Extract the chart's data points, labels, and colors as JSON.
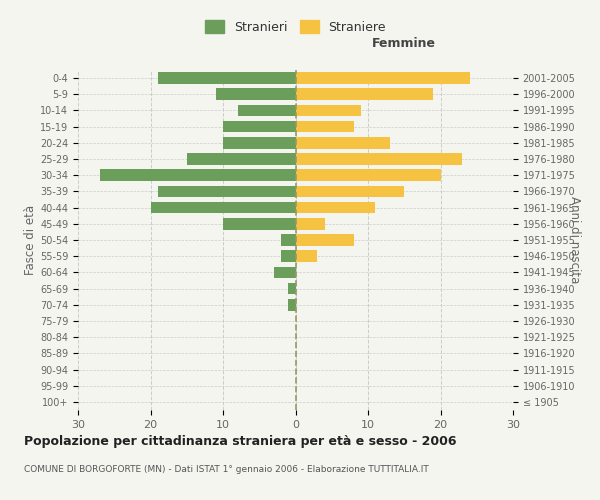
{
  "age_groups": [
    "100+",
    "95-99",
    "90-94",
    "85-89",
    "80-84",
    "75-79",
    "70-74",
    "65-69",
    "60-64",
    "55-59",
    "50-54",
    "45-49",
    "40-44",
    "35-39",
    "30-34",
    "25-29",
    "20-24",
    "15-19",
    "10-14",
    "5-9",
    "0-4"
  ],
  "birth_years": [
    "≤ 1905",
    "1906-1910",
    "1911-1915",
    "1916-1920",
    "1921-1925",
    "1926-1930",
    "1931-1935",
    "1936-1940",
    "1941-1945",
    "1946-1950",
    "1951-1955",
    "1956-1960",
    "1961-1965",
    "1966-1970",
    "1971-1975",
    "1976-1980",
    "1981-1985",
    "1986-1990",
    "1991-1995",
    "1996-2000",
    "2001-2005"
  ],
  "males": [
    0,
    0,
    0,
    0,
    0,
    0,
    1,
    1,
    3,
    2,
    2,
    10,
    20,
    19,
    27,
    15,
    10,
    10,
    8,
    11,
    19
  ],
  "females": [
    0,
    0,
    0,
    0,
    0,
    0,
    0,
    0,
    0,
    3,
    8,
    4,
    11,
    15,
    20,
    23,
    13,
    8,
    9,
    19,
    24
  ],
  "male_color": "#6a9e5a",
  "female_color": "#f5c242",
  "background_color": "#f5f5f0",
  "grid_color": "#cccccc",
  "title": "Popolazione per cittadinanza straniera per età e sesso - 2006",
  "subtitle": "COMUNE DI BORGOFORTE (MN) - Dati ISTAT 1° gennaio 2006 - Elaborazione TUTTITALIA.IT",
  "ylabel_left": "Fasce di età",
  "ylabel_right": "Anni di nascita",
  "header_right": "Femmine",
  "legend_stranieri": "Stranieri",
  "legend_straniere": "Straniere",
  "xlim": 30
}
